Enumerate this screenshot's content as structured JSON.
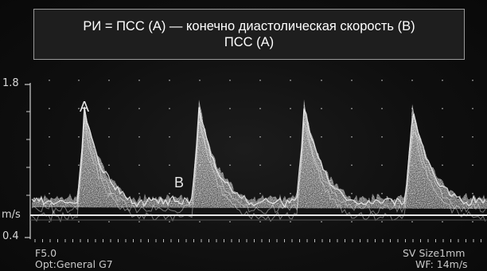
{
  "formula": {
    "line1": "РИ = ПСС (А) — конечно диастолическая скорость (В)",
    "line2": "ПСС (А)"
  },
  "scale": {
    "top_label": "1.8",
    "unit_label": "m/s",
    "bottom_label": "0.4"
  },
  "waveform_labels": {
    "peak": "A",
    "end_diastolic": "B"
  },
  "info": {
    "frequency": "F5.0",
    "preset": "Opt:General G7",
    "sample_volume": "SV Size1mm",
    "wall_filter": "WF: 14m/s"
  },
  "colors": {
    "background": "#0d0d0d",
    "spectrum": "#d9d9d9",
    "baseline": "#e8e8e8",
    "box_border": "#9a9a9a"
  }
}
